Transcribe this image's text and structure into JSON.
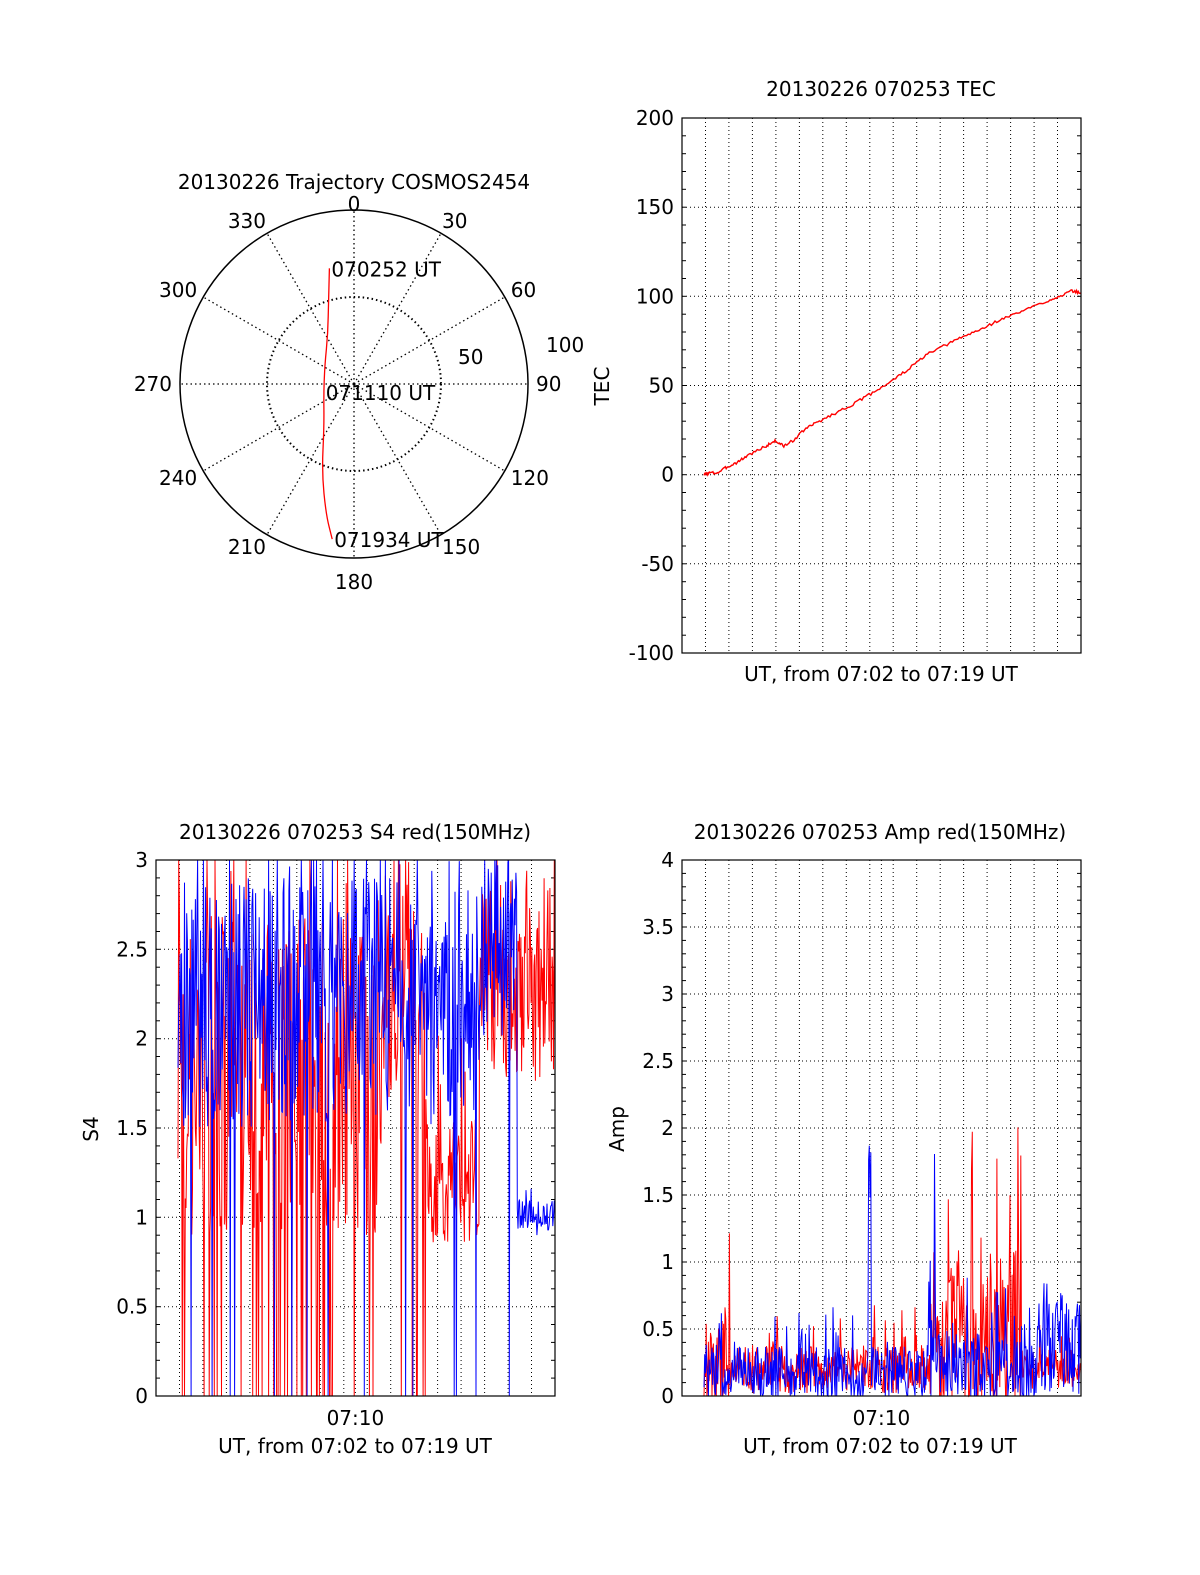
{
  "colors": {
    "red": "#ff0000",
    "blue": "#0000ff",
    "axis": "#000000",
    "grid": "#000000"
  },
  "chart_data": [
    {
      "type": "polar",
      "title": "20130226 Trajectory COSMOS2454",
      "angle_labels": [
        "0",
        "30",
        "60",
        "90",
        "120",
        "150",
        "180",
        "210",
        "240",
        "270",
        "300",
        "330"
      ],
      "radius_labels": [
        "50",
        "100"
      ],
      "radius_max": 100,
      "grid": true,
      "series": [
        {
          "color": "red",
          "points": [
            {
              "az": 348,
              "r": 68
            },
            {
              "az": 343,
              "r": 50
            },
            {
              "az": 333,
              "r": 33
            },
            {
              "az": 303,
              "r": 20
            },
            {
              "az": 255,
              "r": 18
            },
            {
              "az": 215,
              "r": 30
            },
            {
              "az": 200,
              "r": 54
            },
            {
              "az": 192,
              "r": 77
            },
            {
              "az": 188,
              "r": 90
            }
          ]
        }
      ],
      "annotations": [
        {
          "text": "070252 UT",
          "az": 348,
          "r": 68
        },
        {
          "text": "071110 UT",
          "az": 255,
          "r": 18
        },
        {
          "text": "071934 UT",
          "az": 188,
          "r": 90
        }
      ]
    },
    {
      "type": "line",
      "title": "20130226 070253 TEC",
      "xlabel": "UT, from 07:02 to 07:19 UT",
      "ylabel": "TEC",
      "ylim": [
        -100,
        200
      ],
      "yticks": [
        "-100",
        "-50",
        "0",
        "50",
        "100",
        "150",
        "200"
      ],
      "grid": true,
      "series": [
        {
          "color": "red",
          "x": [
            0,
            0.2,
            0.6,
            1.0,
            1.5,
            2.0,
            2.8,
            3.2,
            3.6,
            4.0,
            4.6,
            5.2,
            6.0,
            6.8,
            7.6,
            8.4,
            9.2,
            10.0,
            10.8,
            11.6,
            12.4,
            13.2,
            14.0,
            14.8,
            15.6,
            16.2,
            16.6,
            17.0
          ],
          "y": [
            0,
            1,
            1,
            4,
            7,
            11,
            16,
            19,
            16,
            19,
            26,
            30,
            35,
            40,
            46,
            52,
            59,
            67,
            72,
            77,
            81,
            86,
            90,
            94,
            98,
            101,
            103,
            102
          ]
        }
      ]
    },
    {
      "type": "line",
      "title": "20130226 070253 S4 red(150MHz)",
      "xlabel": "UT, from 07:02 to 07:19 UT",
      "ylabel": "S4",
      "ylim": [
        0,
        3
      ],
      "yticks": [
        "0",
        "0.5",
        "1",
        "1.5",
        "2",
        "2.5",
        "3"
      ],
      "xticks": [
        "07:10"
      ],
      "grid": true,
      "series": [
        {
          "color": "red",
          "seed": 7,
          "segments": [
            [
              0,
              9,
              1.8,
              0.9,
              0.12
            ],
            [
              9,
              11.2,
              2.2,
              0.8,
              0.06
            ],
            [
              11.2,
              13.6,
              1.2,
              0.35,
              0.0
            ],
            [
              13.6,
              17,
              2.3,
              0.6,
              0.0
            ]
          ]
        },
        {
          "color": "blue",
          "seed": 13,
          "segments": [
            [
              0,
              13.6,
              2.2,
              0.7,
              0.04
            ],
            [
              13.6,
              15.3,
              2.5,
              0.5,
              0.03
            ],
            [
              15.3,
              17,
              1.0,
              0.1,
              0.0
            ]
          ]
        }
      ]
    },
    {
      "type": "line",
      "title": "20130226 070253 Amp red(150MHz)",
      "xlabel": "UT, from 07:02 to 07:19 UT",
      "ylabel": "Amp",
      "ylim": [
        0,
        4
      ],
      "yticks": [
        "0",
        "0.5",
        "1",
        "1.5",
        "2",
        "2.5",
        "3",
        "3.5",
        "4"
      ],
      "xticks": [
        "07:10"
      ],
      "grid": true,
      "series": [
        {
          "color": "red",
          "seed": 21,
          "segments": [
            [
              0,
              1.2,
              0.25,
              0.5,
              0.0
            ],
            [
              1.2,
              10.2,
              0.2,
              0.18,
              0.0
            ],
            [
              10.2,
              14.3,
              0.45,
              0.65,
              0.0
            ],
            [
              14.3,
              17,
              0.2,
              0.15,
              0.0
            ]
          ]
        },
        {
          "color": "blue",
          "seed": 5,
          "segments": [
            [
              0,
              7.4,
              0.17,
              0.2,
              0.0
            ],
            [
              7.4,
              7.55,
              1.8,
              0.35,
              0.0
            ],
            [
              7.55,
              10.1,
              0.17,
              0.2,
              0.0
            ],
            [
              10.1,
              10.5,
              0.55,
              0.6,
              0.0
            ],
            [
              10.5,
              15.0,
              0.2,
              0.25,
              0.0
            ],
            [
              15.0,
              17,
              0.35,
              0.35,
              0.0
            ]
          ]
        }
      ]
    }
  ]
}
